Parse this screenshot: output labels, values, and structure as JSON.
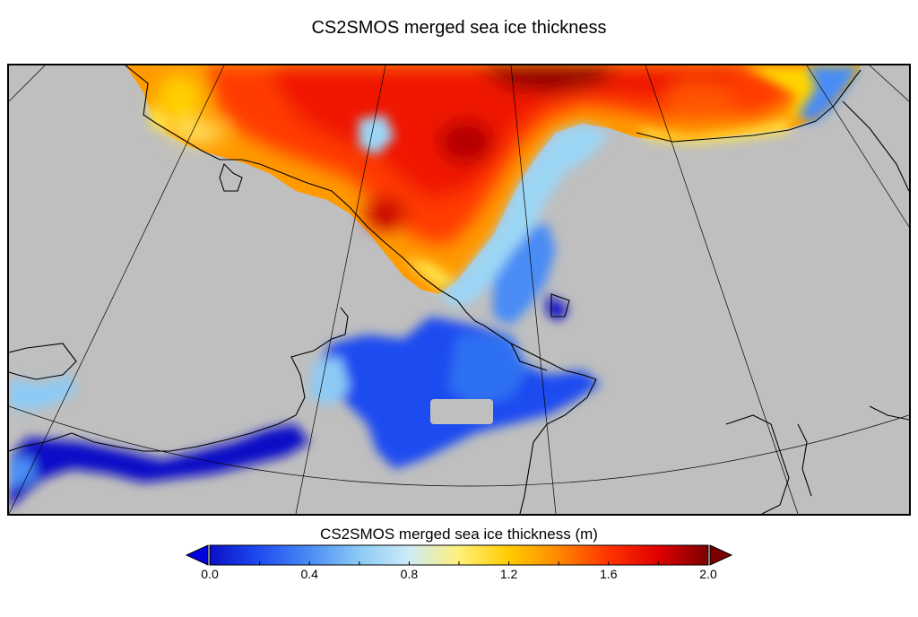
{
  "title": "CS2SMOS merged sea ice thickness",
  "colorbar": {
    "label": "CS2SMOS merged sea ice thickness (m)",
    "min": 0.0,
    "max": 2.0,
    "ticks": [
      "0.0",
      "0.4",
      "0.8",
      "1.2",
      "1.6",
      "2.0"
    ],
    "colors": [
      "#0a10c8",
      "#1f4cf0",
      "#4a8cf5",
      "#8ccaf5",
      "#cdebf7",
      "#fff07a",
      "#ffcc00",
      "#ff8800",
      "#ff3300",
      "#e00000",
      "#7a0000"
    ],
    "under_color": "#0000e0",
    "over_color": "#7a0000"
  },
  "map": {
    "land_color": "#bfbfbf",
    "coastline_color": "#000000",
    "graticule_color": "#000000"
  }
}
